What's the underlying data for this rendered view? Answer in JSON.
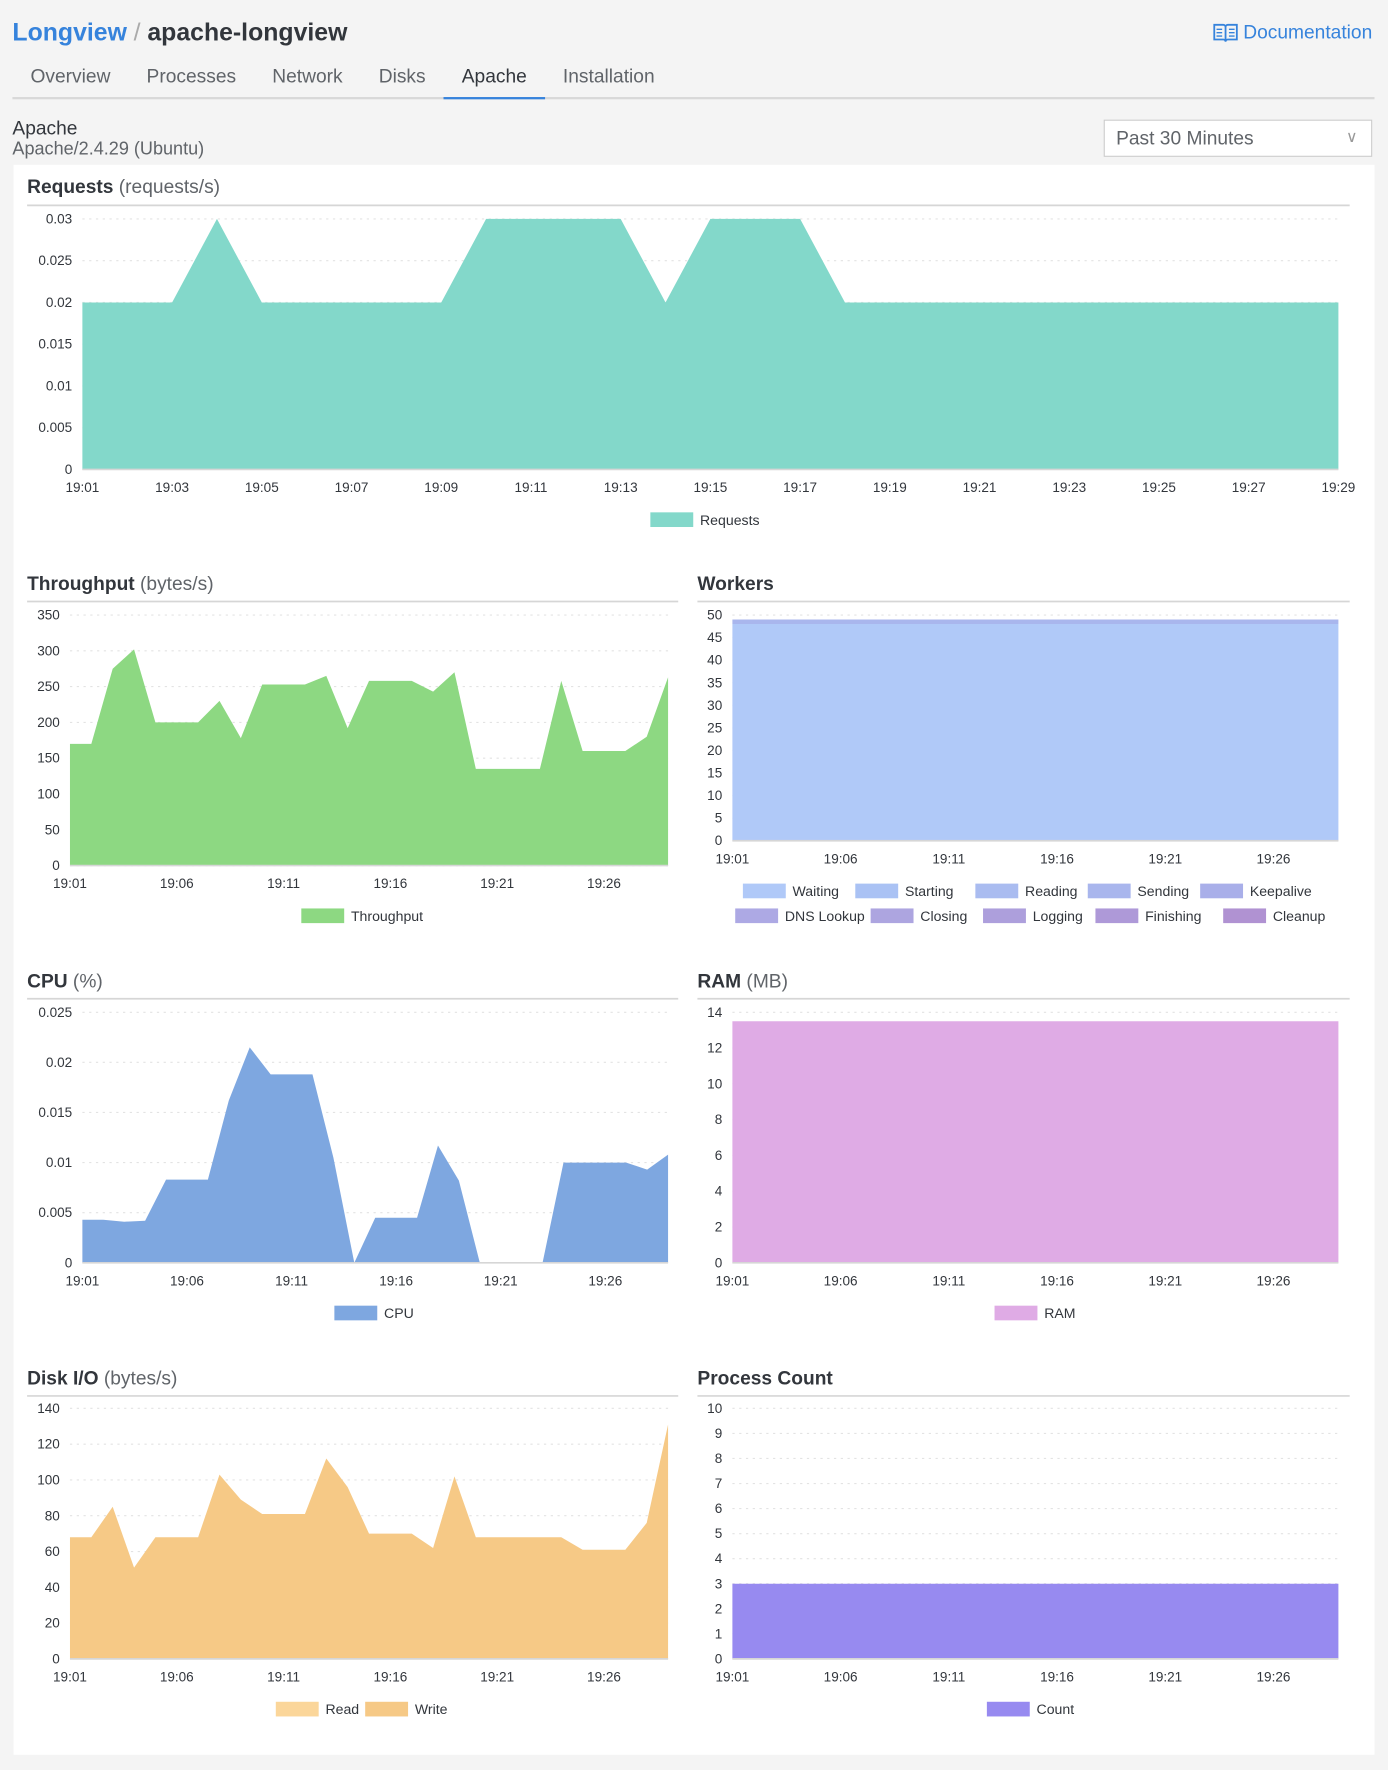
{
  "header": {
    "breadcrumb_root": "Longview",
    "breadcrumb_current": "apache-longview",
    "documentation": "Documentation"
  },
  "tabs": [
    {
      "label": "Overview"
    },
    {
      "label": "Processes"
    },
    {
      "label": "Network"
    },
    {
      "label": "Disks"
    },
    {
      "label": "Apache",
      "active": true
    },
    {
      "label": "Installation"
    }
  ],
  "service": {
    "name": "Apache",
    "version": "Apache/2.4.29 (Ubuntu)"
  },
  "time_range": {
    "selected": "Past 30 Minutes"
  },
  "colors": {
    "accent": "#3683dc"
  },
  "chart_data": [
    {
      "id": "requests",
      "type": "area",
      "title": "Requests",
      "unit": "(requests/s)",
      "ylim": [
        0,
        0.03
      ],
      "yticks": [
        "0",
        "0.005",
        "0.01",
        "0.015",
        "0.02",
        "0.025",
        "0.03"
      ],
      "xticks": [
        "19:01",
        "19:03",
        "19:05",
        "19:07",
        "19:09",
        "19:11",
        "19:13",
        "19:15",
        "19:17",
        "19:19",
        "19:21",
        "19:23",
        "19:25",
        "19:27",
        "19:29"
      ],
      "x_start": "19:01",
      "x_end": "19:29",
      "grid": true,
      "legend": "bottom",
      "series": [
        {
          "name": "Requests",
          "color": "#83d8ca",
          "values": [
            0.02,
            0.02,
            0.02,
            0.03,
            0.02,
            0.02,
            0.02,
            0.02,
            0.02,
            0.03,
            0.03,
            0.03,
            0.03,
            0.02,
            0.03,
            0.03,
            0.03,
            0.02,
            0.02,
            0.02,
            0.02,
            0.02,
            0.02,
            0.02,
            0.02,
            0.02,
            0.02,
            0.02,
            0.02
          ]
        }
      ]
    },
    {
      "id": "throughput",
      "type": "area",
      "title": "Throughput",
      "unit": "(bytes/s)",
      "ylim": [
        0,
        350
      ],
      "yticks": [
        "0",
        "50",
        "100",
        "150",
        "200",
        "250",
        "300",
        "350"
      ],
      "xticks": [
        "19:01",
        "19:06",
        "19:11",
        "19:16",
        "19:21",
        "19:26"
      ],
      "x_start": "19:01",
      "x_end": "19:29",
      "grid": true,
      "legend": "bottom",
      "series": [
        {
          "name": "Throughput",
          "color": "#8dd882",
          "values": [
            170,
            170,
            275,
            302,
            200,
            200,
            200,
            230,
            178,
            253,
            253,
            253,
            265,
            192,
            258,
            258,
            258,
            243,
            270,
            135,
            135,
            135,
            135,
            258,
            160,
            160,
            160,
            180,
            263
          ]
        }
      ]
    },
    {
      "id": "workers",
      "type": "area",
      "stacked": true,
      "title": "Workers",
      "unit": "",
      "ylim": [
        0,
        50
      ],
      "yticks": [
        "0",
        "5",
        "10",
        "15",
        "20",
        "25",
        "30",
        "35",
        "40",
        "45",
        "50"
      ],
      "xticks": [
        "19:01",
        "19:06",
        "19:11",
        "19:16",
        "19:21",
        "19:26"
      ],
      "x_start": "19:01",
      "x_end": "19:29",
      "grid": true,
      "legend": "bottom",
      "series": [
        {
          "name": "Waiting",
          "color": "#b0c9f8",
          "values": [
            48,
            48,
            48,
            48,
            48,
            48,
            48,
            48,
            48,
            48,
            48,
            48,
            48,
            48,
            48,
            48,
            48,
            48,
            48,
            48,
            48,
            48,
            48,
            48,
            48,
            48,
            48,
            48,
            48
          ]
        },
        {
          "name": "Starting",
          "color": "#aac2f4",
          "values": [
            0,
            0,
            0,
            0,
            0,
            0,
            0,
            0,
            0,
            0,
            0,
            0,
            0,
            0,
            0,
            0,
            0,
            0,
            0,
            0,
            0,
            0,
            0,
            0,
            0,
            0,
            0,
            0,
            0
          ]
        },
        {
          "name": "Reading",
          "color": "#aabcf0",
          "values": [
            0,
            0,
            0,
            0,
            0,
            0,
            0,
            0,
            0,
            0,
            0,
            0,
            0,
            0,
            0,
            0,
            0,
            0,
            0,
            0,
            0,
            0,
            0,
            0,
            0,
            0,
            0,
            0,
            0
          ]
        },
        {
          "name": "Sending",
          "color": "#a9b6ed",
          "values": [
            1,
            1,
            1,
            1,
            1,
            1,
            1,
            1,
            1,
            1,
            1,
            1,
            1,
            1,
            1,
            1,
            1,
            1,
            1,
            1,
            1,
            1,
            1,
            1,
            1,
            1,
            1,
            1,
            1
          ]
        },
        {
          "name": "Keepalive",
          "color": "#a9afe9",
          "values": [
            0,
            0,
            0,
            0,
            0,
            0,
            0,
            0,
            0,
            0,
            0,
            0,
            0,
            0,
            0,
            0,
            0,
            0,
            0,
            0,
            0,
            0,
            0,
            0,
            0,
            0,
            0,
            0,
            0
          ]
        },
        {
          "name": "DNS Lookup",
          "color": "#ada9e4",
          "values": []
        },
        {
          "name": "Closing",
          "color": "#ada5e0",
          "values": []
        },
        {
          "name": "Logging",
          "color": "#ad9fdc",
          "values": []
        },
        {
          "name": "Finishing",
          "color": "#ae99d8",
          "values": []
        },
        {
          "name": "Cleanup",
          "color": "#b092d2",
          "values": []
        }
      ]
    },
    {
      "id": "cpu",
      "type": "area",
      "title": "CPU",
      "unit": "(%)",
      "ylim": [
        0,
        0.025
      ],
      "yticks": [
        "0",
        "0.005",
        "0.01",
        "0.015",
        "0.02",
        "0.025"
      ],
      "xticks": [
        "19:01",
        "19:06",
        "19:11",
        "19:16",
        "19:21",
        "19:26"
      ],
      "x_start": "19:01",
      "x_end": "19:29",
      "grid": true,
      "legend": "bottom",
      "series": [
        {
          "name": "CPU",
          "color": "#7ea7e0",
          "values": [
            0.0043,
            0.0043,
            0.0041,
            0.0042,
            0.0083,
            0.0083,
            0.0083,
            0.0162,
            0.0215,
            0.0188,
            0.0188,
            0.0188,
            0.0105,
            0,
            0.0045,
            0.0045,
            0.0045,
            0.0117,
            0.0082,
            0,
            0,
            0,
            0,
            0.01,
            0.01,
            0.01,
            0.01,
            0.0093,
            0.0108
          ]
        }
      ]
    },
    {
      "id": "ram",
      "type": "area",
      "title": "RAM",
      "unit": "(MB)",
      "ylim": [
        0,
        14
      ],
      "yticks": [
        "0",
        "2",
        "4",
        "6",
        "8",
        "10",
        "12",
        "14"
      ],
      "xticks": [
        "19:01",
        "19:06",
        "19:11",
        "19:16",
        "19:21",
        "19:26"
      ],
      "x_start": "19:01",
      "x_end": "19:29",
      "grid": true,
      "legend": "bottom",
      "series": [
        {
          "name": "RAM",
          "color": "#dfabe5",
          "values": [
            13.5,
            13.5,
            13.5,
            13.5,
            13.5,
            13.5,
            13.5,
            13.5,
            13.5,
            13.5,
            13.5,
            13.5,
            13.5,
            13.5,
            13.5,
            13.5,
            13.5,
            13.5,
            13.5,
            13.5,
            13.5,
            13.5,
            13.5,
            13.5,
            13.5,
            13.5,
            13.5,
            13.5,
            13.5
          ]
        }
      ]
    },
    {
      "id": "disk",
      "type": "area",
      "stacked": true,
      "title": "Disk I/O",
      "unit": "(bytes/s)",
      "ylim": [
        0,
        140
      ],
      "yticks": [
        "0",
        "20",
        "40",
        "60",
        "80",
        "100",
        "120",
        "140"
      ],
      "xticks": [
        "19:01",
        "19:06",
        "19:11",
        "19:16",
        "19:21",
        "19:26"
      ],
      "x_start": "19:01",
      "x_end": "19:29",
      "grid": true,
      "legend": "bottom",
      "series": [
        {
          "name": "Read",
          "color": "#fbd69a",
          "values": [
            0,
            0,
            0,
            0,
            0,
            0,
            0,
            0,
            0,
            0,
            0,
            0,
            0,
            0,
            0,
            0,
            0,
            0,
            0,
            0,
            0,
            0,
            0,
            0,
            0,
            0,
            0,
            0,
            0
          ]
        },
        {
          "name": "Write",
          "color": "#f6c986",
          "values": [
            68,
            68,
            85,
            51,
            68,
            68,
            68,
            103,
            89,
            81,
            81,
            81,
            112,
            96,
            70,
            70,
            70,
            62,
            102,
            68,
            68,
            68,
            68,
            68,
            61,
            61,
            61,
            76,
            131
          ]
        }
      ]
    },
    {
      "id": "process",
      "type": "area",
      "title": "Process Count",
      "unit": "",
      "ylim": [
        0,
        10
      ],
      "yticks": [
        "0",
        "1",
        "2",
        "3",
        "4",
        "5",
        "6",
        "7",
        "8",
        "9",
        "10"
      ],
      "xticks": [
        "19:01",
        "19:06",
        "19:11",
        "19:16",
        "19:21",
        "19:26"
      ],
      "x_start": "19:01",
      "x_end": "19:29",
      "grid": true,
      "legend": "bottom",
      "series": [
        {
          "name": "Count",
          "color": "#978af0",
          "values": [
            3,
            3,
            3,
            3,
            3,
            3,
            3,
            3,
            3,
            3,
            3,
            3,
            3,
            3,
            3,
            3,
            3,
            3,
            3,
            3,
            3,
            3,
            3,
            3,
            3,
            3,
            3,
            3,
            3
          ]
        }
      ]
    }
  ]
}
